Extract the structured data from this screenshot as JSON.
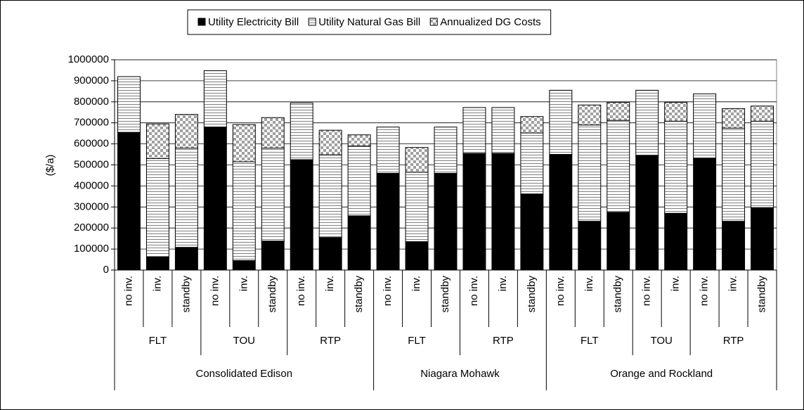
{
  "chart_data": {
    "type": "stacked-bar",
    "y_label": "($/a)",
    "ylim": [
      0,
      1000000
    ],
    "yticks": [
      0,
      100000,
      200000,
      300000,
      400000,
      500000,
      600000,
      700000,
      800000,
      900000,
      1000000
    ],
    "grid": true,
    "legend": "top",
    "category_groups": [
      {
        "name": "Consolidated Edison",
        "groups": [
          {
            "name": "FLT",
            "categories": [
              "no inv.",
              "inv.",
              "standby"
            ]
          },
          {
            "name": "TOU",
            "categories": [
              "no inv.",
              "inv.",
              "standby"
            ]
          },
          {
            "name": "RTP",
            "categories": [
              "no inv.",
              "inv.",
              "standby"
            ]
          }
        ]
      },
      {
        "name": "Niagara Mohawk",
        "groups": [
          {
            "name": "FLT",
            "categories": [
              "no inv.",
              "inv.",
              "standby"
            ]
          },
          {
            "name": "RTP",
            "categories": [
              "no inv.",
              "inv.",
              "standby"
            ]
          }
        ]
      },
      {
        "name": "Orange and Rockland",
        "groups": [
          {
            "name": "FLT",
            "categories": [
              "no inv.",
              "inv.",
              "standby"
            ]
          },
          {
            "name": "TOU",
            "categories": [
              "no inv.",
              "inv."
            ]
          },
          {
            "name": "RTP",
            "categories": [
              "no inv.",
              "inv.",
              "standby"
            ]
          }
        ]
      }
    ],
    "series": [
      {
        "name": "Utility Electricity Bill",
        "color": "#000000",
        "pattern": "solid",
        "values": [
          655000,
          62000,
          108000,
          680000,
          45000,
          138000,
          525000,
          155000,
          258000,
          460000,
          135000,
          460000,
          555000,
          555000,
          362000,
          550000,
          232000,
          275000,
          545000,
          270000,
          532000,
          232000,
          297000
        ]
      },
      {
        "name": "Utility Natural Gas Bill",
        "color": "#808080",
        "pattern": "stripes",
        "values": [
          265000,
          468000,
          472000,
          268000,
          470000,
          442000,
          270000,
          393000,
          332000,
          220000,
          330000,
          220000,
          218000,
          218000,
          290000,
          305000,
          458000,
          437000,
          310000,
          438000,
          306000,
          443000,
          411000
        ]
      },
      {
        "name": "Annualized DG Costs",
        "color": "#a0a0a0",
        "pattern": "checker",
        "values": [
          0,
          165000,
          160000,
          0,
          177000,
          145000,
          0,
          117000,
          53000,
          0,
          118000,
          0,
          0,
          0,
          78000,
          0,
          95000,
          85000,
          0,
          89000,
          0,
          93000,
          72000
        ]
      }
    ]
  }
}
